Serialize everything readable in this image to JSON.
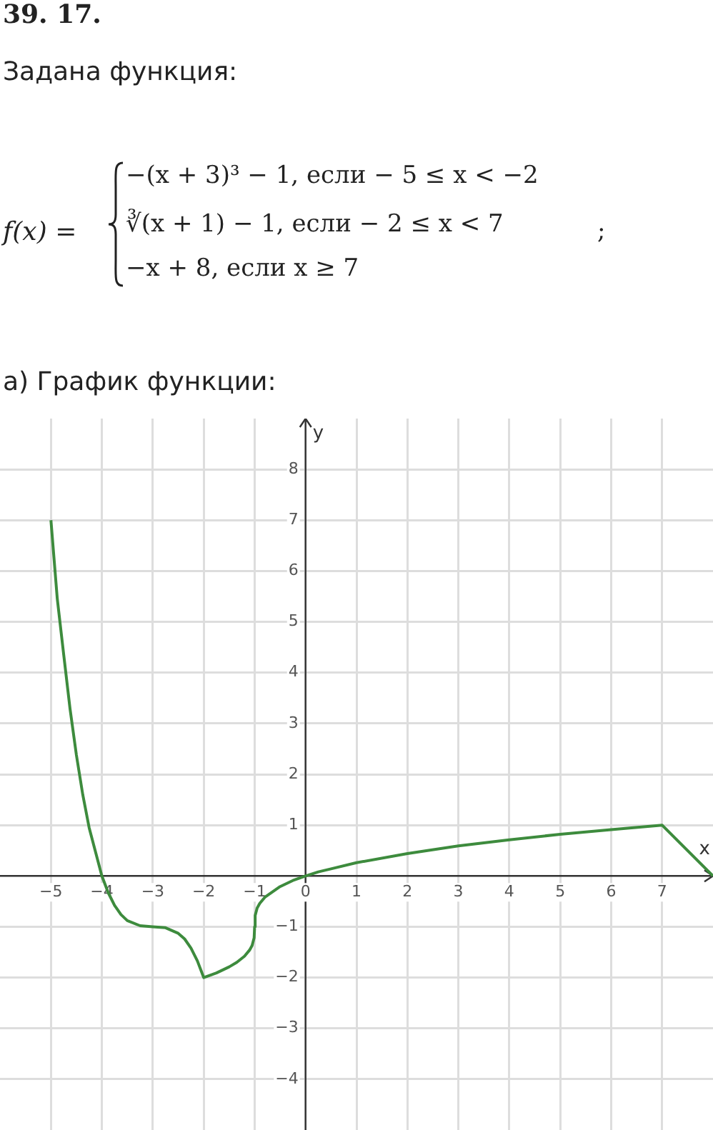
{
  "chart_data": {
    "type": "line",
    "title": "39. 17.",
    "subtitle": "Задана функция:",
    "annotations": [
      "f(x) =",
      "−(x + 3)³ − 1, если − 5 ≤ x < −2",
      "∛(x + 1) − 1, если − 2 ≤ x < 7",
      "−x + 8, если x ≥ 7",
      ";",
      "а) График функции:"
    ],
    "xlabel": "x",
    "ylabel": "y",
    "series": [
      {
        "color": "#3d8b3d",
        "x": [
          -5,
          -4.875,
          -4.75,
          -4.625,
          -4.5,
          -4.375,
          -4.25,
          -4,
          -3.875,
          -3.75,
          -3.625,
          -3.5,
          -3.25,
          -3,
          -2.75,
          -2.5,
          -2.375,
          -2.25,
          -2.125,
          -2,
          -1.75,
          -1.5,
          -1.35,
          -1.2,
          -1.1,
          -1.05,
          -1.01,
          -1,
          -0.99,
          -0.95,
          -0.9,
          -0.8,
          -0.5,
          -0.25,
          0,
          0.25,
          0.5,
          1,
          2,
          3,
          4,
          5,
          6,
          7,
          8
        ],
        "values": [
          7,
          5.45,
          4.36,
          3.29,
          2.38,
          1.6,
          0.95,
          0,
          -0.33,
          -0.58,
          -0.76,
          -0.88,
          -0.98,
          -1,
          -1.02,
          -1.13,
          -1.24,
          -1.42,
          -1.67,
          -2,
          -1.91,
          -1.79,
          -1.7,
          -1.58,
          -1.46,
          -1.37,
          -1.22,
          -1,
          -0.78,
          -0.63,
          -0.54,
          -0.42,
          -0.21,
          -0.09,
          0,
          0.08,
          0.14,
          0.26,
          0.44,
          0.59,
          0.71,
          0.82,
          0.91,
          1,
          0
        ]
      }
    ],
    "xlim": [
      -6,
      8
    ],
    "ylim": [
      -5,
      9
    ],
    "xticks": [
      -5,
      -4,
      -3,
      -2,
      -1,
      0,
      1,
      2,
      3,
      4,
      5,
      6,
      7
    ],
    "yticks": [
      -4,
      -3,
      -2,
      -1,
      1,
      2,
      3,
      4,
      5,
      6,
      7,
      8
    ],
    "grid": true,
    "legend": false,
    "marker": "none",
    "line_style": "solid"
  }
}
